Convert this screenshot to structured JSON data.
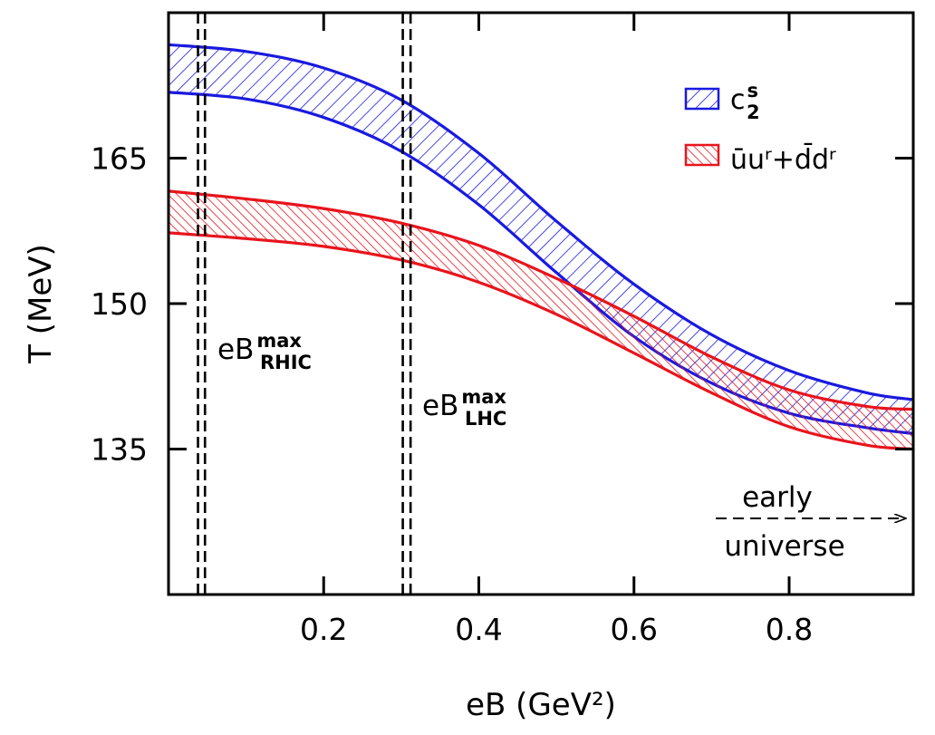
{
  "chart_data": {
    "type": "area",
    "xlabel": "eB  (GeV²)",
    "ylabel": "T  (MeV)",
    "xlim": [
      0.0,
      0.96
    ],
    "ylim": [
      120,
      180
    ],
    "xticks": [
      0.2,
      0.4,
      0.6,
      0.8
    ],
    "xtick_labels": [
      "0.2",
      "0.4",
      "0.6",
      "0.8"
    ],
    "yticks": [
      135,
      150,
      165
    ],
    "ytick_labels": [
      "135",
      "150",
      "165"
    ],
    "grid": false,
    "legend_position": "top-right",
    "series": [
      {
        "name": "c2s",
        "legend_main": "c",
        "legend_sup": "s",
        "legend_sub": "2",
        "color": "#1a1adf",
        "hatch": "backslash",
        "x": [
          0.0,
          0.1,
          0.2,
          0.3,
          0.4,
          0.5,
          0.6,
          0.7,
          0.8,
          0.9,
          0.96
        ],
        "upper": [
          176.7,
          176.0,
          174.3,
          171.0,
          165.5,
          158.5,
          152.0,
          146.8,
          143.1,
          140.8,
          140.1
        ],
        "lower": [
          171.8,
          171.1,
          169.2,
          165.7,
          160.2,
          153.2,
          146.6,
          141.8,
          138.7,
          137.2,
          136.6
        ]
      },
      {
        "name": "ubar_u_r_plus_dbar_d_r",
        "legend_label": "ūuʳ+d̄dʳ",
        "color": "#e8141c",
        "hatch": "slash",
        "x": [
          0.0,
          0.1,
          0.2,
          0.3,
          0.4,
          0.5,
          0.6,
          0.7,
          0.8,
          0.9,
          0.96
        ],
        "upper": [
          161.6,
          160.8,
          159.8,
          158.3,
          156.0,
          152.6,
          148.7,
          144.5,
          141.1,
          139.4,
          139.1
        ],
        "lower": [
          157.3,
          156.7,
          155.9,
          154.5,
          152.2,
          148.9,
          144.9,
          140.8,
          137.3,
          135.4,
          135.0
        ]
      }
    ],
    "vlines": [
      {
        "name": "eB_RHIC",
        "x": [
          0.038,
          0.047
        ],
        "label_main": "eB",
        "label_sup": "max",
        "label_sub": "RHIC"
      },
      {
        "name": "eB_LHC",
        "x": [
          0.302,
          0.312
        ],
        "label_main": "eB",
        "label_sup": "max",
        "label_sub": "LHC"
      }
    ],
    "annotation": {
      "line1": "early",
      "line2": "universe"
    }
  }
}
